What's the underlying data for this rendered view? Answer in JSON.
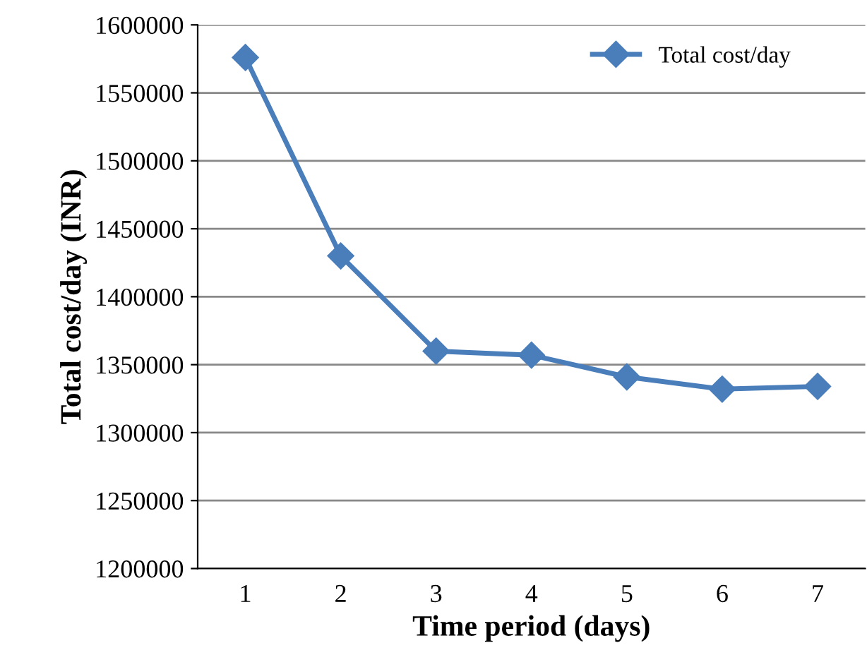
{
  "chart_data": {
    "type": "line",
    "xlabel": "Time period (days)",
    "ylabel": "Total cost/day (INR)",
    "categories": [
      "1",
      "2",
      "3",
      "4",
      "5",
      "6",
      "7"
    ],
    "series": [
      {
        "name": "Total cost/day",
        "color": "#4a7ebb",
        "values": [
          1576000,
          1430000,
          1360000,
          1357000,
          1341000,
          1332000,
          1334000
        ]
      }
    ],
    "ylim": [
      1200000,
      1600000
    ],
    "yticks": [
      1200000,
      1250000,
      1300000,
      1350000,
      1400000,
      1450000,
      1500000,
      1550000,
      1600000
    ],
    "grid": "y",
    "legend": "top right",
    "marker": "diamond",
    "line_style": "solid"
  }
}
